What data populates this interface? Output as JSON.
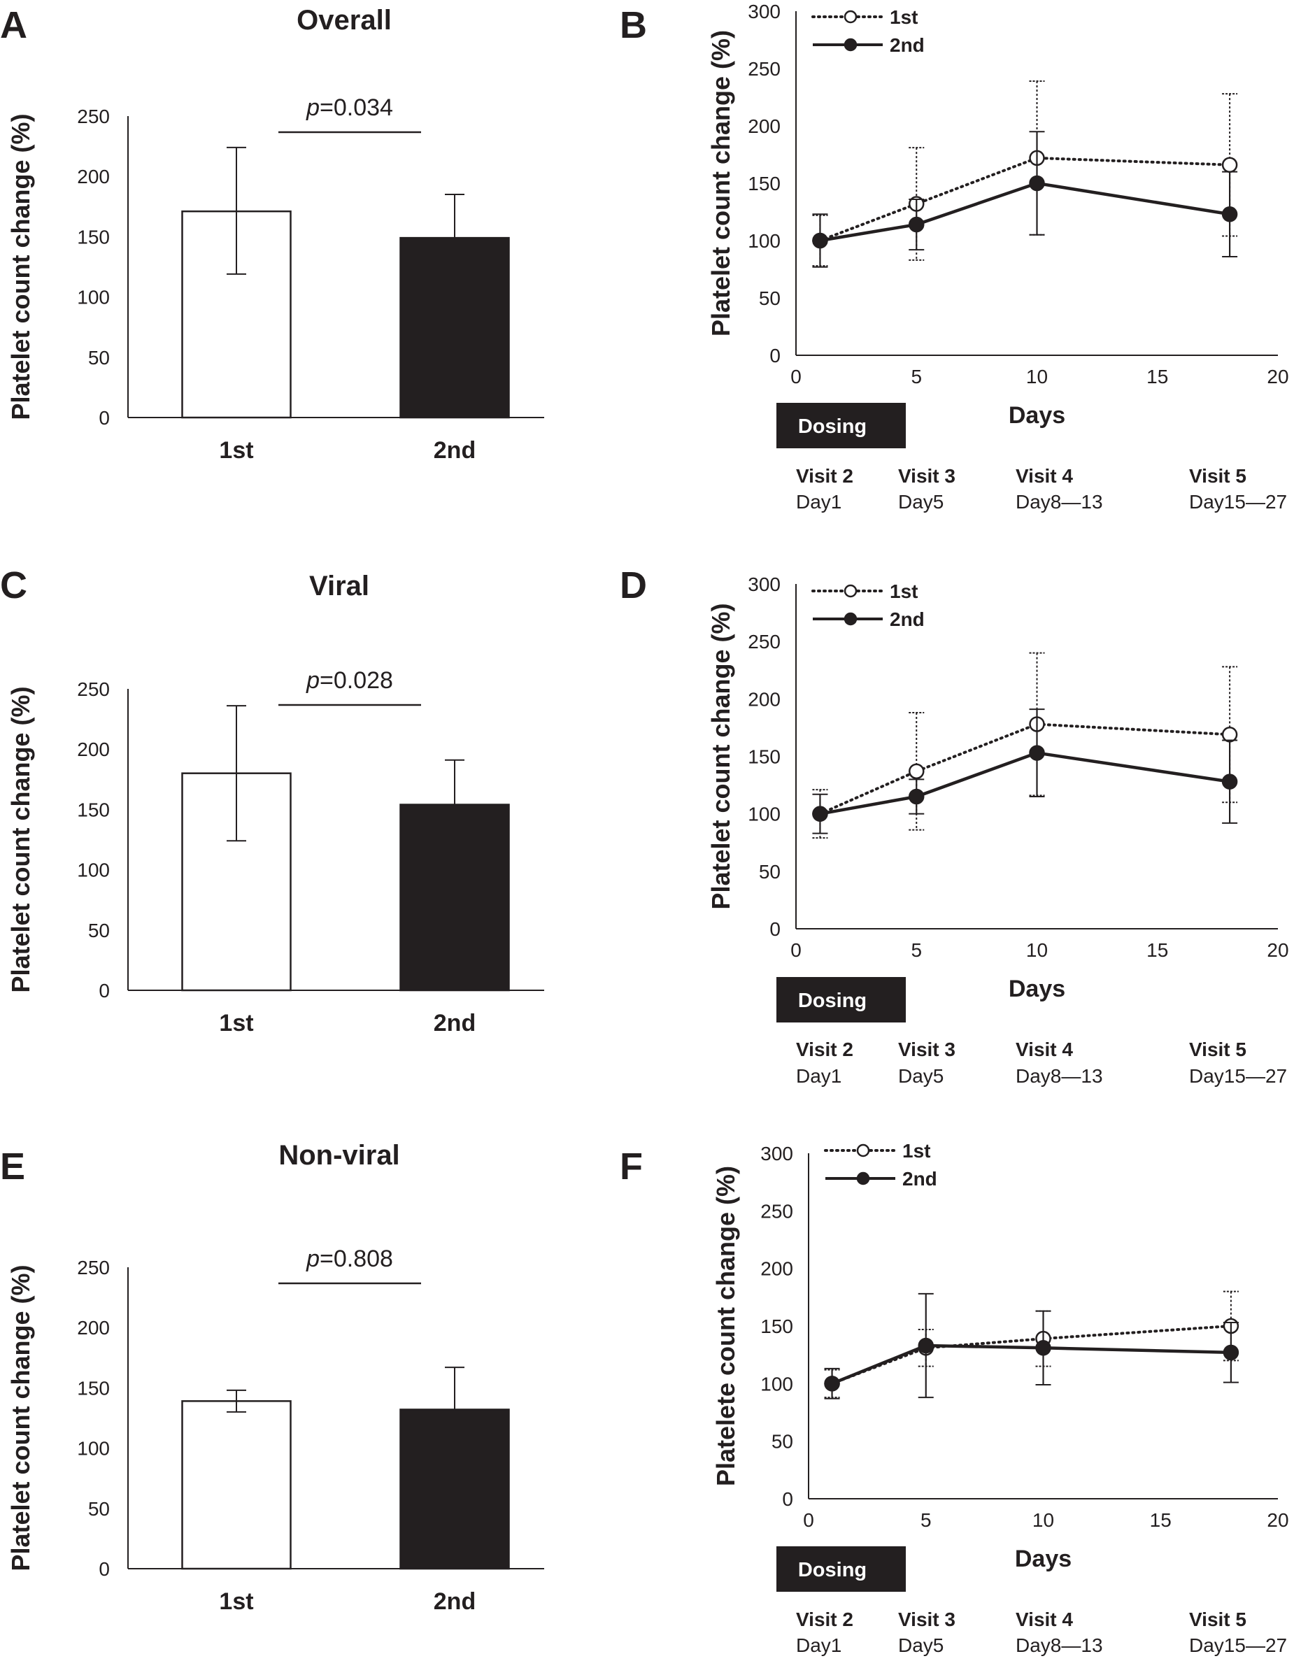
{
  "chart_data": [
    {
      "panel": "A",
      "type": "bar",
      "title": "Overall",
      "ylabel": "Platelet count change (%)",
      "ylim": [
        0,
        250
      ],
      "yticks": [
        0,
        50,
        100,
        150,
        200,
        250
      ],
      "categories": [
        "1st",
        "2nd"
      ],
      "values": [
        171,
        149
      ],
      "err_low": [
        52,
        0
      ],
      "err_high": [
        53,
        36
      ],
      "fills": [
        "#ffffff",
        "#231f20"
      ],
      "p_label": "p",
      "p_value": "=0.034"
    },
    {
      "panel": "B",
      "type": "line",
      "xlabel": "Days",
      "ylabel": "Platelet count change (%)",
      "ylim": [
        0,
        300
      ],
      "yticks": [
        0,
        50,
        100,
        150,
        200,
        250,
        300
      ],
      "xlim": [
        0,
        20
      ],
      "xticks": [
        0,
        5,
        10,
        15,
        20
      ],
      "x": [
        1,
        5,
        10,
        18
      ],
      "series": [
        {
          "name": "1st",
          "style": "dotted-open",
          "values": [
            100,
            132,
            172,
            166
          ],
          "err": [
            22,
            49,
            67,
            62
          ]
        },
        {
          "name": "2nd",
          "style": "solid-filled",
          "values": [
            100,
            114,
            150,
            123
          ],
          "err": [
            23,
            22,
            45,
            37
          ]
        }
      ],
      "dosing": "Dosing",
      "visits": [
        {
          "label": "Visit 2",
          "days": "Day1"
        },
        {
          "label": "Visit 3",
          "days": "Day5"
        },
        {
          "label": "Visit 4",
          "days": "Day8—13"
        },
        {
          "label": "Visit 5",
          "days": "Day15—27"
        }
      ]
    },
    {
      "panel": "C",
      "type": "bar",
      "title": "Viral",
      "ylabel": "Platelet count change (%)",
      "ylim": [
        0,
        250
      ],
      "yticks": [
        0,
        50,
        100,
        150,
        200,
        250
      ],
      "categories": [
        "1st",
        "2nd"
      ],
      "values": [
        180,
        154
      ],
      "err_low": [
        56,
        0
      ],
      "err_high": [
        56,
        37
      ],
      "fills": [
        "#ffffff",
        "#231f20"
      ],
      "p_label": "p",
      "p_value": "=0.028"
    },
    {
      "panel": "D",
      "type": "line",
      "xlabel": "Days",
      "ylabel": "Platelet count change (%)",
      "ylim": [
        0,
        300
      ],
      "yticks": [
        0,
        50,
        100,
        150,
        200,
        250,
        300
      ],
      "xlim": [
        0,
        20
      ],
      "xticks": [
        0,
        5,
        10,
        15,
        20
      ],
      "x": [
        1,
        5,
        10,
        18
      ],
      "series": [
        {
          "name": "1st",
          "style": "dotted-open",
          "values": [
            100,
            137,
            178,
            169
          ],
          "err": [
            21,
            51,
            62,
            59
          ]
        },
        {
          "name": "2nd",
          "style": "solid-filled",
          "values": [
            100,
            115,
            153,
            128
          ],
          "err": [
            17,
            15,
            38,
            36
          ]
        }
      ],
      "dosing": "Dosing",
      "visits": [
        {
          "label": "Visit 2",
          "days": "Day1"
        },
        {
          "label": "Visit 3",
          "days": "Day5"
        },
        {
          "label": "Visit 4",
          "days": "Day8—13"
        },
        {
          "label": "Visit 5",
          "days": "Day15—27"
        }
      ]
    },
    {
      "panel": "E",
      "type": "bar",
      "title": "Non-viral",
      "ylabel": "Platelet count change (%)",
      "ylim": [
        0,
        250
      ],
      "yticks": [
        0,
        50,
        100,
        150,
        200,
        250
      ],
      "categories": [
        "1st",
        "2nd"
      ],
      "values": [
        139,
        132
      ],
      "err_low": [
        9,
        0
      ],
      "err_high": [
        9,
        35
      ],
      "fills": [
        "#ffffff",
        "#231f20"
      ],
      "p_label": "p",
      "p_value": "=0.808"
    },
    {
      "panel": "F",
      "type": "line",
      "xlabel": "Days",
      "ylabel": "Platelete count change (%)",
      "ylim": [
        0,
        300
      ],
      "yticks": [
        0,
        50,
        100,
        150,
        200,
        250,
        300
      ],
      "xlim": [
        0,
        20
      ],
      "xticks": [
        0,
        5,
        10,
        15,
        20
      ],
      "x": [
        1,
        5,
        10,
        18
      ],
      "series": [
        {
          "name": "1st",
          "style": "dotted-open",
          "values": [
            100,
            131,
            139,
            150
          ],
          "err": [
            12,
            16,
            24,
            30
          ]
        },
        {
          "name": "2nd",
          "style": "solid-filled",
          "values": [
            100,
            133,
            131,
            127
          ],
          "err": [
            13,
            45,
            32,
            26
          ]
        }
      ],
      "dosing": "Dosing",
      "visits": [
        {
          "label": "Visit 2",
          "days": "Day1"
        },
        {
          "label": "Visit 3",
          "days": "Day5"
        },
        {
          "label": "Visit 4",
          "days": "Day8—13"
        },
        {
          "label": "Visit 5",
          "days": "Day15—27"
        }
      ]
    }
  ]
}
